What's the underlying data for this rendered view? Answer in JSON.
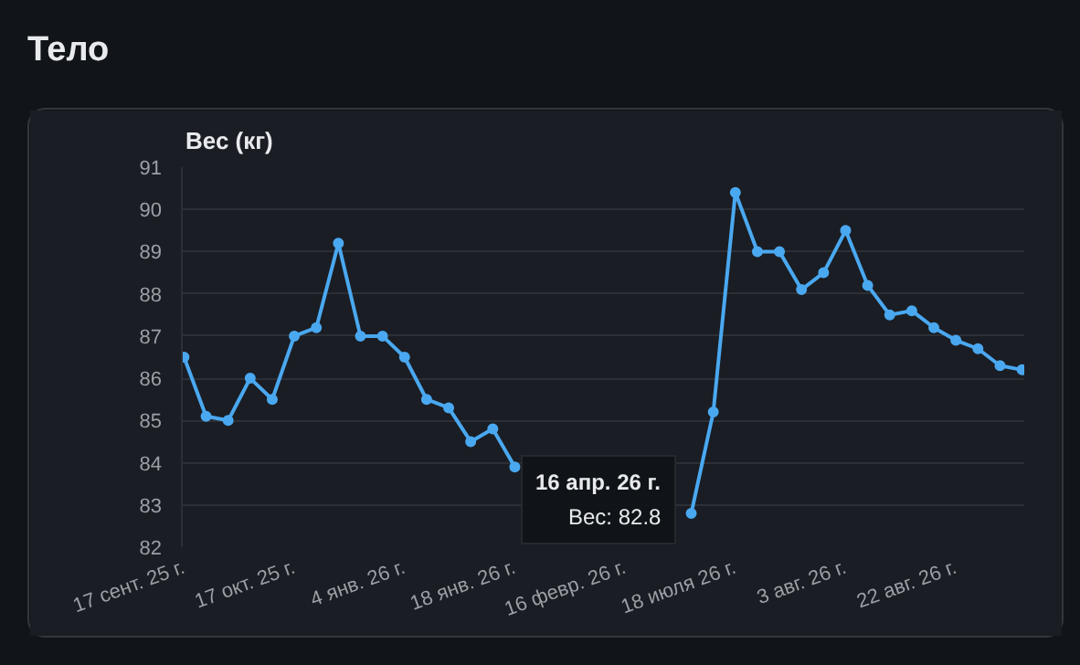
{
  "chart_data": {
    "type": "line",
    "title": "Тело",
    "subtitle": "Вес (кг)",
    "categories": [
      "17 сент. 25 г.",
      null,
      null,
      null,
      null,
      "17 окт. 25 г.",
      null,
      null,
      null,
      null,
      "4 янв. 26 г.",
      null,
      null,
      null,
      null,
      "18 янв. 26 г.",
      null,
      null,
      null,
      null,
      "16 февр. 26 г.",
      null,
      null,
      null,
      null,
      "18 июля 26 г.",
      null,
      null,
      null,
      null,
      "3 авг. 26 г.",
      null,
      null,
      null,
      null,
      "22 авг. 26 г.",
      null,
      null,
      null
    ],
    "series": [
      {
        "color": "#4aa8f0",
        "values": [
          86.5,
          85.1,
          85.0,
          86.0,
          85.5,
          87.0,
          87.2,
          89.2,
          87.0,
          87.0,
          86.5,
          85.5,
          85.3,
          84.5,
          84.8,
          83.9,
          null,
          null,
          null,
          null,
          null,
          null,
          null,
          82.8,
          85.2,
          90.4,
          89.0,
          89.0,
          88.1,
          88.5,
          89.5,
          88.2,
          87.5,
          87.6,
          87.2,
          86.9,
          86.7,
          86.3,
          86.2
        ]
      }
    ],
    "ylim": [
      82,
      91
    ],
    "yticks": [
      82,
      83,
      84,
      85,
      86,
      87,
      88,
      89,
      90,
      91
    ],
    "grid": "y",
    "marker": "circle",
    "line_style": "solid",
    "annotations": [
      "16 апр. 26 г.",
      "Вес: 82.8"
    ]
  }
}
